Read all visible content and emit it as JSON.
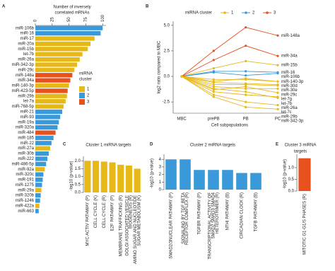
{
  "chart_data": [
    {
      "panel": "A",
      "type": "bar",
      "orientation": "horizontal",
      "xlabel": [
        "Number of inversely",
        "correlated mRNAs"
      ],
      "categories": [
        "miR-106b",
        "miR-16",
        "miR-17",
        "miR-20a",
        "miR-15b",
        "let-7b",
        "miR-26a",
        "miR-342-3p",
        "miR-29c",
        "miR-148a",
        "miR-34a",
        "miR-140-3p",
        "miR-423-5p",
        "miR-29b",
        "let-7a",
        "miR-768-5p",
        "miR-21",
        "miR-93",
        "miR-19a",
        "miR-320a",
        "miR-484",
        "miR-185",
        "miR-22",
        "miR-27a",
        "miR-30b",
        "miR-222",
        "miR-486-5p",
        "miR-92a",
        "miR-320c",
        "miR-191",
        "miR-1275",
        "miR-29a",
        "miR-320b",
        "miR-1246",
        "miR-422a",
        "miR-663"
      ],
      "values": [
        100,
        97,
        88,
        82,
        78,
        70,
        66,
        62,
        58,
        55,
        52,
        50,
        48,
        47,
        45,
        42,
        40,
        37,
        35,
        33,
        30,
        27,
        24,
        22,
        20,
        18,
        16,
        14,
        12,
        11,
        10,
        9,
        8,
        7,
        6,
        5
      ],
      "colors": [
        "#3a9ad9",
        "#3a9ad9",
        "#e6b818",
        "#e6b818",
        "#e6b818",
        "#e6b818",
        "#e6b818",
        "#e6b818",
        "#e6b818",
        "#e8501e",
        "#e8501e",
        "#e6b818",
        "#e8501e",
        "#e6b818",
        "#e6b818",
        "#e6b818",
        "#3a9ad9",
        "#3a9ad9",
        "#3a9ad9",
        "#3a9ad9",
        "#e8501e",
        "#3a9ad9",
        "#3a9ad9",
        "#e6b818",
        "#3a9ad9",
        "#3a9ad9",
        "#3a9ad9",
        "#e6b818",
        "#3a9ad9",
        "#3a9ad9",
        "#3a9ad9",
        "#e6b818",
        "#3a9ad9",
        "#3a9ad9",
        "#e6b818",
        "#3a9ad9"
      ],
      "xlim": [
        0,
        105
      ],
      "xticks": [
        0,
        25,
        50,
        75,
        100
      ],
      "legend_title": [
        "miRNA",
        "cluster"
      ],
      "legend": [
        {
          "name": "1",
          "color": "#e6b818"
        },
        {
          "name": "2",
          "color": "#3a9ad9"
        },
        {
          "name": "3",
          "color": "#e8501e"
        }
      ]
    },
    {
      "panel": "B",
      "type": "line",
      "ylabel": "log2 ratio compared to MBC",
      "xlabel": "Cell subpopulations",
      "categories": [
        "MBC",
        "prePB",
        "PB",
        "PC"
      ],
      "ylim": [
        -3.6,
        5.4
      ],
      "yticks": [
        {
          "value": 5,
          "label": "5.0"
        },
        2.5,
        {
          "value": 0,
          "label": "0.0"
        },
        -2.5
      ],
      "legend_title": "miRNA cluster",
      "legend": [
        {
          "name": "1",
          "color": "#e6b818"
        },
        {
          "name": "2",
          "color": "#3a9ad9"
        },
        {
          "name": "3",
          "color": "#e8501e"
        }
      ],
      "series": [
        {
          "name": "miR-148a",
          "color": "#e8501e",
          "values": [
            0,
            2.5,
            4.8,
            4.0
          ]
        },
        {
          "name": "miR-34a",
          "color": "#e8501e",
          "values": [
            0,
            1.6,
            3.0,
            2.0
          ]
        },
        {
          "name": "miR-15b",
          "color": "#e6b818",
          "values": [
            0,
            0.8,
            1.5,
            1.1
          ]
        },
        {
          "name": "miR-16",
          "color": "#3a9ad9",
          "values": [
            0,
            0.5,
            0.5,
            0.4
          ]
        },
        {
          "name": "miR-106b",
          "color": "#3a9ad9",
          "values": [
            0,
            0.4,
            0.1,
            0.3
          ]
        },
        {
          "name": "miR-140-3p",
          "color": "#e6b818",
          "values": [
            0,
            -0.3,
            -0.3,
            -0.5
          ]
        },
        {
          "name": "miR-30d",
          "color": "#e6b818",
          "values": [
            0,
            -0.5,
            -0.2,
            -0.5
          ]
        },
        {
          "name": "miR-30e",
          "color": "#e6b818",
          "values": [
            0,
            -0.6,
            -0.7,
            -0.8
          ]
        },
        {
          "name": "miR-29c",
          "color": "#e6b818",
          "values": [
            0,
            -0.8,
            -0.8,
            -0.9
          ]
        },
        {
          "name": "let-7g",
          "color": "#e6b818",
          "values": [
            0,
            -1.0,
            -1.2,
            -1.2
          ]
        },
        {
          "name": "let-7b",
          "color": "#e6b818",
          "values": [
            0,
            -1.3,
            -1.0,
            -1.6
          ]
        },
        {
          "name": "miR-26a",
          "color": "#e6b818",
          "values": [
            0,
            -1.5,
            -1.8,
            -2.0
          ]
        },
        {
          "name": "let-7c",
          "color": "#e6b818",
          "values": [
            0,
            -1.2,
            -1.5,
            -2.1
          ]
        },
        {
          "name": "miR-29b",
          "color": "#e6b818",
          "values": [
            0,
            -1.8,
            -2.5,
            -2.8
          ]
        },
        {
          "name": "miR-342-3p",
          "color": "#e6b818",
          "values": [
            0,
            -2.0,
            -3.0,
            -3.2
          ]
        }
      ]
    },
    {
      "panel": "C",
      "type": "bar",
      "title": [
        "Cluster 1 miRNA targets"
      ],
      "ylabel": "-log10 (p-value)",
      "color": "#e6b818",
      "categories": [
        [
          "MYC ACTIV PATHWAY (P)"
        ],
        [
          "CELL CYCLE (K)"
        ],
        [
          "CELL CYCLE (R)"
        ],
        [
          "E2F PATHWAY (P)"
        ],
        [
          "MEMBRANE TRAFFICKING (R)"
        ],
        [
          "GOLGI ASSOCIATED VESICLE",
          "BIOGENESIS (R)"
        ],
        [
          "AMINO SUGAR AND NUCLEOTIDE",
          "SUGAR METABOLISM (K)"
        ]
      ],
      "values": [
        2.0,
        2.0,
        1.95,
        1.9,
        1.75,
        1.7,
        1.5
      ],
      "ylim": [
        0,
        2.1
      ],
      "yticks": [
        {
          "value": 0,
          "label": "0.0"
        },
        0.5,
        {
          "value": 1,
          "label": "1.0"
        },
        1.5,
        {
          "value": 2,
          "label": "2.0"
        }
      ]
    },
    {
      "panel": "D",
      "type": "bar",
      "title": [
        "Cluster 2 miRNA targets"
      ],
      "ylabel": "-log10 (p-value)",
      "color": "#3a9ad9",
      "categories": [
        [
          "SMAD2/3NUCLEAR PATHWAY (P)"
        ],
        [
          "SIGNALING BY TGF BETA",
          "RECEPTOR COMPLEX (R)"
        ],
        [
          "TGFBR PATHWAY (P)"
        ],
        [
          "TRANSCRIPTIONAL ACTIVITY OF",
          "SMAD2 SMAD3 SMAD4",
          "HETEROTRIMER (R)"
        ],
        [
          "NTHI PATHWAY (B)"
        ],
        [
          "CIRCADIAN CLOCK (R)"
        ],
        [
          "TGFB PATHWAY (B)"
        ]
      ],
      "values": [
        4.0,
        4.0,
        2.6,
        2.6,
        2.6,
        2.2,
        2.2
      ],
      "ylim": [
        0,
        4.3
      ],
      "yticks": [
        0,
        1,
        2,
        3,
        4
      ]
    },
    {
      "panel": "E",
      "type": "bar",
      "title": [
        "Cluster 3 miRNA",
        "targets"
      ],
      "ylabel": "-log10 (p-value)",
      "color": "#e8501e",
      "categories": [
        [
          "MITOTIC G1-G1/S PHASES (R)"
        ]
      ],
      "values": [
        1.4
      ],
      "ylim": [
        0,
        1.45
      ],
      "yticks": [
        {
          "value": 0,
          "label": "0.0"
        },
        0.5,
        {
          "value": 1,
          "label": "1.0"
        }
      ]
    }
  ]
}
